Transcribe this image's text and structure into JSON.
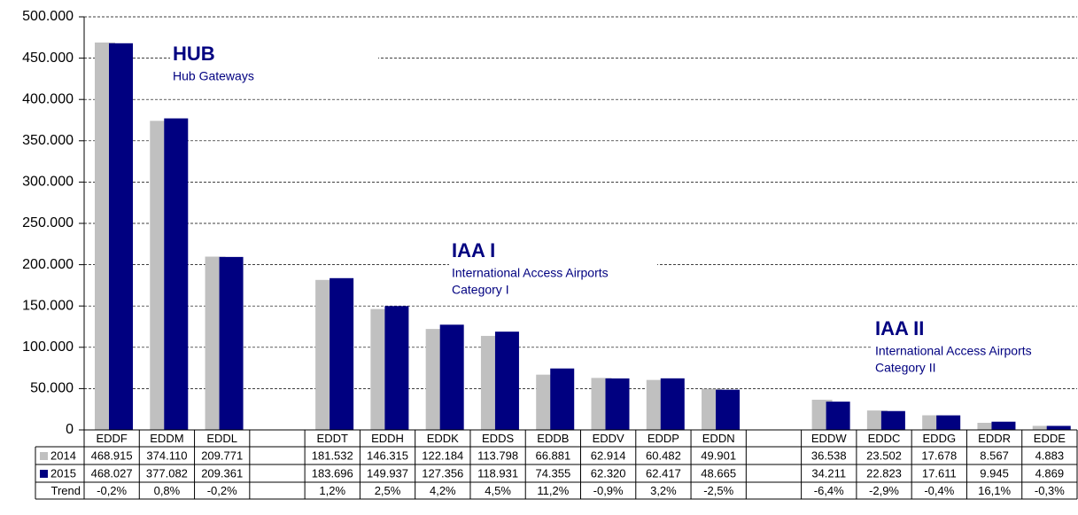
{
  "chart_data": {
    "type": "bar",
    "categories": [
      "EDDF",
      "EDDM",
      "EDDL",
      null,
      "EDDT",
      "EDDH",
      "EDDK",
      "EDDS",
      "EDDB",
      "EDDV",
      "EDDP",
      "EDDN",
      null,
      "EDDW",
      "EDDC",
      "EDDG",
      "EDDR",
      "EDDE"
    ],
    "series": [
      {
        "name": "2014",
        "color": "#c0c0c0",
        "values": [
          468915,
          374110,
          209771,
          null,
          181532,
          146315,
          122184,
          113798,
          66881,
          62914,
          60482,
          49901,
          null,
          36538,
          23502,
          17678,
          8567,
          4883
        ],
        "value_labels": [
          "468.915",
          "374.110",
          "209.771",
          null,
          "181.532",
          "146.315",
          "122.184",
          "113.798",
          "66.881",
          "62.914",
          "60.482",
          "49.901",
          null,
          "36.538",
          "23.502",
          "17.678",
          "8.567",
          "4.883"
        ]
      },
      {
        "name": "2015",
        "color": "#000080",
        "values": [
          468027,
          377082,
          209361,
          null,
          183696,
          149937,
          127356,
          118931,
          74355,
          62320,
          62417,
          48665,
          null,
          34211,
          22823,
          17611,
          9945,
          4869
        ],
        "value_labels": [
          "468.027",
          "377.082",
          "209.361",
          null,
          "183.696",
          "149.937",
          "127.356",
          "118.931",
          "74.355",
          "62.320",
          "62.417",
          "48.665",
          null,
          "34.211",
          "22.823",
          "17.611",
          "9.945",
          "4.869"
        ]
      }
    ],
    "trend": {
      "name": "Trend",
      "values": [
        -0.2,
        0.8,
        -0.2,
        null,
        1.2,
        2.5,
        4.2,
        4.5,
        11.2,
        -0.9,
        3.2,
        -2.5,
        null,
        -6.4,
        -2.9,
        -0.4,
        16.1,
        -0.3
      ],
      "value_labels": [
        "-0,2%",
        "0,8%",
        "-0,2%",
        null,
        "1,2%",
        "2,5%",
        "4,2%",
        "4,5%",
        "11,2%",
        "-0,9%",
        "3,2%",
        "-2,5%",
        null,
        "-6,4%",
        "-2,9%",
        "-0,4%",
        "16,1%",
        "-0,3%"
      ]
    },
    "annotations": [
      {
        "title": "HUB",
        "lines": [
          "Hub Gateways"
        ]
      },
      {
        "title": "IAA I",
        "lines": [
          "International Access Airports",
          "Category I"
        ]
      },
      {
        "title": "IAA II",
        "lines": [
          "International Access Airports",
          "Category II"
        ]
      }
    ],
    "ylim": [
      0,
      500000
    ],
    "yticks": [
      0,
      {
        "value": 50000,
        "label": "50.000"
      },
      {
        "value": 100000,
        "label": "100.000"
      },
      {
        "value": 150000,
        "label": "150.000"
      },
      {
        "value": 200000,
        "label": "200.000"
      },
      {
        "value": 250000,
        "label": "250.000"
      },
      {
        "value": 300000,
        "label": "300.000"
      },
      {
        "value": 350000,
        "label": "350.000"
      },
      {
        "value": 400000,
        "label": "400.000"
      },
      {
        "value": 450000,
        "label": "450.000"
      },
      {
        "value": 500000,
        "label": "500.000"
      }
    ],
    "grid": true
  }
}
